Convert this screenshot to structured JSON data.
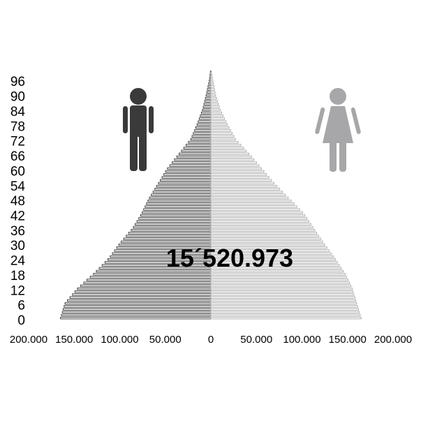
{
  "chart_data": {
    "type": "bar",
    "orientation": "horizontal-population-pyramid",
    "total_label": "15´520.973",
    "y_ticks": [
      "0",
      "6",
      "12",
      "18",
      "24",
      "30",
      "36",
      "42",
      "48",
      "54",
      "60",
      "66",
      "72",
      "78",
      "84",
      "90",
      "96"
    ],
    "x_ticks_left": [
      "200.000",
      "150.000",
      "100.000",
      "50.000",
      "0"
    ],
    "x_ticks_right": [
      "50.000",
      "100.000",
      "150.000",
      "200.000"
    ],
    "xlim": [
      -200000,
      200000
    ],
    "age_range": [
      0,
      100
    ],
    "grid": false,
    "series": [
      {
        "side": "left",
        "icon": "male-icon",
        "color": "#333333",
        "profile": [
          [
            0,
            165000
          ],
          [
            6,
            160000
          ],
          [
            12,
            146000
          ],
          [
            18,
            128000
          ],
          [
            24,
            112000
          ],
          [
            30,
            100000
          ],
          [
            36,
            86000
          ],
          [
            42,
            76000
          ],
          [
            48,
            68000
          ],
          [
            54,
            58000
          ],
          [
            60,
            48000
          ],
          [
            66,
            35000
          ],
          [
            72,
            22000
          ],
          [
            78,
            15000
          ],
          [
            84,
            9000
          ],
          [
            90,
            5000
          ],
          [
            96,
            1500
          ],
          [
            100,
            300
          ]
        ]
      },
      {
        "side": "right",
        "icon": "female-icon",
        "color": "#aaaaaa",
        "profile": [
          [
            0,
            165000
          ],
          [
            6,
            160000
          ],
          [
            12,
            155000
          ],
          [
            18,
            147000
          ],
          [
            24,
            136000
          ],
          [
            30,
            124000
          ],
          [
            36,
            113000
          ],
          [
            42,
            102000
          ],
          [
            48,
            86000
          ],
          [
            54,
            70000
          ],
          [
            60,
            56000
          ],
          [
            66,
            42000
          ],
          [
            72,
            27000
          ],
          [
            78,
            18000
          ],
          [
            84,
            10000
          ],
          [
            90,
            5000
          ],
          [
            96,
            2000
          ],
          [
            100,
            300
          ]
        ]
      }
    ]
  }
}
